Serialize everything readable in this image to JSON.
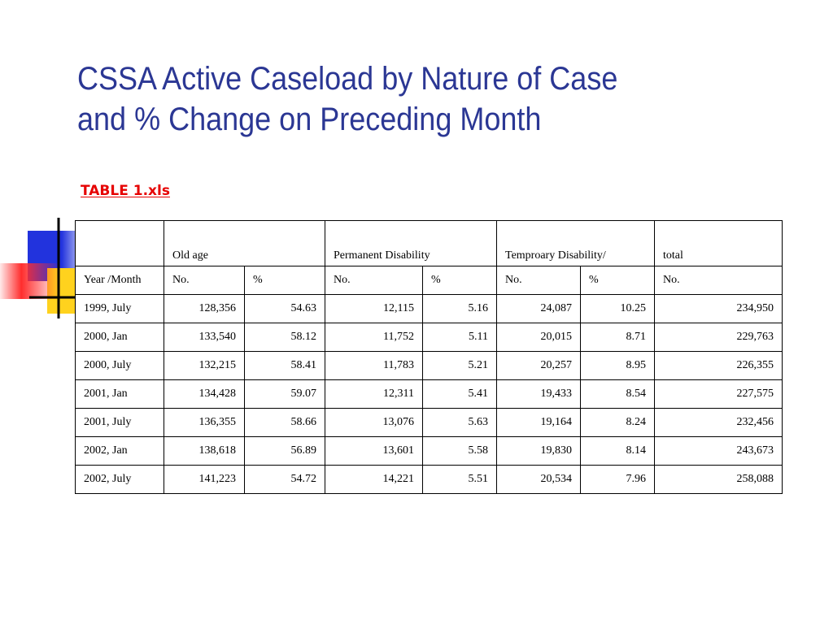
{
  "slide": {
    "title_lines": [
      "CSSA Active Caseload by Nature of Case",
      "and % Change on Preceding Month"
    ],
    "file_link": "TABLE 1.xls"
  },
  "table": {
    "group_headers": [
      "",
      "Old age",
      "Permanent Disability",
      "Temproary Disability/",
      "total"
    ],
    "sub_headers": [
      "Year /Month",
      "No.",
      "%",
      "No.",
      "%",
      "No.",
      "%",
      "No."
    ],
    "rows": [
      [
        "1999, July",
        "128,356",
        "54.63",
        "12,115",
        "5.16",
        "24,087",
        "10.25",
        "234,950"
      ],
      [
        "2000, Jan",
        "133,540",
        "58.12",
        "11,752",
        "5.11",
        "20,015",
        "8.71",
        "229,763"
      ],
      [
        "2000, July",
        "132,215",
        "58.41",
        "11,783",
        "5.21",
        "20,257",
        "8.95",
        "226,355"
      ],
      [
        "2001, Jan",
        "134,428",
        "59.07",
        "12,311",
        "5.41",
        "19,433",
        "8.54",
        "227,575"
      ],
      [
        "2001, July",
        "136,355",
        "58.66",
        "13,076",
        "5.63",
        "19,164",
        "8.24",
        "232,456"
      ],
      [
        "2002, Jan",
        "138,618",
        "56.89",
        "13,601",
        "5.58",
        "19,830",
        "8.14",
        "243,673"
      ],
      [
        "2002, July",
        "141,223",
        "54.72",
        "14,221",
        "5.51",
        "20,534",
        "7.96",
        "258,088"
      ]
    ]
  },
  "colors": {
    "title": "#2b3794",
    "link": "#e60000",
    "decoration_blue": "#2233dd",
    "decoration_yellow": "#ffd21e",
    "decoration_red": "#ff2d2d"
  }
}
